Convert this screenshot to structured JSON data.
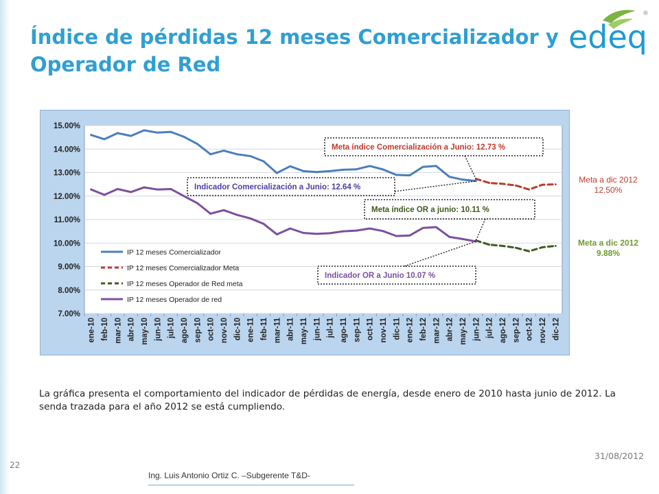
{
  "slide": {
    "title": "Índice de pérdidas 12 meses Comercializador y Operador de Red",
    "caption": "La gráfica presenta el comportamiento del indicador de pérdidas de energía, desde enero de 2010 hasta junio de 2012. La senda trazada para el año 2012 se está cumpliendo.",
    "date": "31/08/2012",
    "page_number": "22",
    "author": "Ing. Luis Antonio Ortiz C. –Subgerente T&D-",
    "logo_text": "edeq",
    "logo_mark": "®"
  },
  "colors": {
    "title": "#2f9fd3",
    "logo_text": "#1f9bd1",
    "logo_leaf": "#7cb342",
    "comercializador": "#4a7ebb",
    "comercializador_meta": "#c0392b",
    "operador_meta": "#3e5a1c",
    "operador": "#7c4f9e",
    "plot_background": "#ffffff",
    "chart_background": "#bcd5ee"
  },
  "chart_data": {
    "type": "line",
    "title": "",
    "xlabel": "",
    "ylabel": "",
    "ylim": [
      0.07,
      0.15
    ],
    "y_ticks": [
      "7.00%",
      "8.00%",
      "9.00%",
      "10.00%",
      "11.00%",
      "12.00%",
      "13.00%",
      "14.00%",
      "15.00%"
    ],
    "grid": true,
    "legend_position": "bottom-left",
    "categories": [
      "ene-10",
      "feb-10",
      "mar-10",
      "abr-10",
      "may-10",
      "jun-10",
      "jul-10",
      "ago-10",
      "sep-10",
      "oct-10",
      "nov-10",
      "dic-10",
      "ene-11",
      "feb-11",
      "mar-11",
      "abr-11",
      "may-11",
      "jun-11",
      "jul-11",
      "ago-11",
      "sep-11",
      "oct-11",
      "nov-11",
      "dic-11",
      "ene-12",
      "feb-12",
      "mar-12",
      "abr-12",
      "may-12",
      "jun-12",
      "jul-12",
      "ago-12",
      "sep-12",
      "oct-12",
      "nov-12",
      "dic-12"
    ],
    "series": [
      {
        "name": "IP  12 meses Comercializador",
        "style": "solid",
        "values": [
          0.146,
          0.1442,
          0.1468,
          0.1456,
          0.148,
          0.147,
          0.1473,
          0.1452,
          0.1422,
          0.1378,
          0.1393,
          0.1378,
          0.137,
          0.1348,
          0.1298,
          0.1327,
          0.1306,
          0.1302,
          0.1306,
          0.1312,
          0.1314,
          0.1328,
          0.1313,
          0.129,
          0.1288,
          0.1324,
          0.1328,
          0.1282,
          0.127,
          0.1264,
          null,
          null,
          null,
          null,
          null,
          null
        ]
      },
      {
        "name": "IP  12 meses Comercializador Meta",
        "style": "dashed",
        "values": [
          null,
          null,
          null,
          null,
          null,
          null,
          null,
          null,
          null,
          null,
          null,
          null,
          null,
          null,
          null,
          null,
          null,
          null,
          null,
          null,
          null,
          null,
          null,
          null,
          null,
          null,
          null,
          null,
          null,
          0.1273,
          0.1256,
          0.1252,
          0.1245,
          0.1228,
          0.1248,
          0.125
        ]
      },
      {
        "name": "IP  12 meses Operador de Red  meta",
        "style": "dashed",
        "values": [
          null,
          null,
          null,
          null,
          null,
          null,
          null,
          null,
          null,
          null,
          null,
          null,
          null,
          null,
          null,
          null,
          null,
          null,
          null,
          null,
          null,
          null,
          null,
          null,
          null,
          null,
          null,
          null,
          null,
          0.1011,
          0.0993,
          0.0988,
          0.098,
          0.0965,
          0.0982,
          0.0988
        ]
      },
      {
        "name": "IP  12 meses Operador de red",
        "style": "solid",
        "values": [
          0.1228,
          0.1205,
          0.123,
          0.1217,
          0.1237,
          0.1228,
          0.123,
          0.12,
          0.117,
          0.1125,
          0.114,
          0.112,
          0.1105,
          0.1082,
          0.1037,
          0.1062,
          0.1043,
          0.1039,
          0.1042,
          0.105,
          0.1053,
          0.1062,
          0.1051,
          0.103,
          0.1032,
          0.1064,
          0.1068,
          0.1026,
          0.1017,
          0.1007,
          null,
          null,
          null,
          null,
          null,
          null
        ]
      }
    ],
    "annotations": [
      {
        "text": "Meta índice Comercialización a Junio:  12.73 %",
        "anchor_index": 29,
        "anchor_value": 0.1273
      },
      {
        "text": "Indicador Comercialización a Junio: 12.64 %",
        "anchor_index": 29,
        "anchor_value": 0.1264
      },
      {
        "text": "Meta índice OR a junio:  10.11 %",
        "anchor_index": 29,
        "anchor_value": 0.1011
      },
      {
        "text": "Indicador OR a Junio    10.07 %",
        "anchor_index": 29,
        "anchor_value": 0.1007
      }
    ],
    "side_notes": [
      {
        "line1": "Meta a dic 2012",
        "line2": "12.50%"
      },
      {
        "line1": "Meta a dic 2012",
        "line2": "9.88%"
      }
    ]
  }
}
